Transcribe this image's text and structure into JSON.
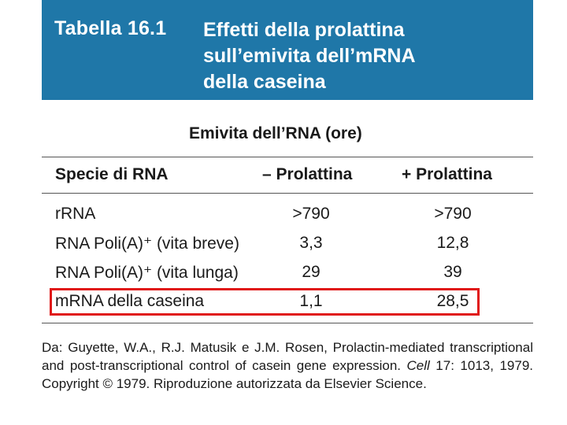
{
  "header": {
    "table_number": "Tabella 16.1",
    "title_lines": [
      "Effetti della prolattina",
      "sull’emivita dell’mRNA",
      "della caseina"
    ]
  },
  "subheader": "Emivita dell’RNA (ore)",
  "columns": [
    "Specie di RNA",
    "– Prolattina",
    "+ Prolattina"
  ],
  "rows": [
    {
      "label": "rRNA",
      "minus": ">790",
      "plus": ">790"
    },
    {
      "label": "RNA Poli(A)⁺ (vita breve)",
      "minus": "3,3",
      "plus": "12,8"
    },
    {
      "label": "RNA Poli(A)⁺ (vita lunga)",
      "minus": "29",
      "plus": "39"
    },
    {
      "label": "mRNA della caseina",
      "minus": "1,1",
      "plus": "28,5"
    }
  ],
  "highlight_color": "#e01818",
  "header_color": "#1f77a8",
  "source": {
    "prefix": "Da: Guyette, W.A., R.J. Matusik e J.M. Rosen, Prolactin-mediated transcriptional and post-transcriptional control of casein gene expression. ",
    "journal": "Cell",
    "suffix": " 17: 1013, 1979. Copyright © 1979. Riproduzione autorizzata da Elsevier Science."
  }
}
